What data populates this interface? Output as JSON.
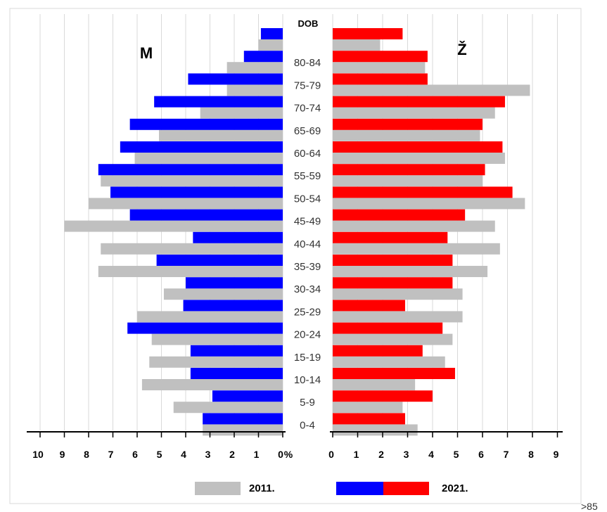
{
  "chart_data": {
    "type": "bar",
    "subtype": "population-pyramid",
    "title": "",
    "center_header": "DOB",
    "center_axis_symbol": "%",
    "side_labels": {
      "left": "M",
      "right": "Ž"
    },
    "categories": [
      ">85",
      "80-84",
      "75-79",
      "70-74",
      "65-69",
      "60-64",
      "55-59",
      "50-54",
      "45-49",
      "40-44",
      "35-39",
      "30-34",
      "25-29",
      "20-24",
      "15-19",
      "10-14",
      "5-9",
      "0-4"
    ],
    "category_labels": [
      "",
      "80-84",
      "75-79",
      "70-74",
      "65-69",
      "60-64",
      "55-59",
      "50-54",
      "45-49",
      "40-44",
      "35-39",
      "30-34",
      "25-29",
      "20-24",
      "15-19",
      "10-14",
      "5-9",
      "0-4"
    ],
    "left_ticks": [
      "10",
      "9",
      "8",
      "7",
      "6",
      "5",
      "4",
      "3",
      "2",
      "1",
      "0"
    ],
    "right_ticks": [
      "0",
      "1",
      "2",
      "3",
      "4",
      "5",
      "6",
      "7",
      "8",
      "9"
    ],
    "xlim": [
      0,
      10
    ],
    "series": [
      {
        "name": "2011.",
        "color": "#c0c0c0",
        "male": [
          1.0,
          2.3,
          2.3,
          3.4,
          5.1,
          6.1,
          7.5,
          8.0,
          9.0,
          7.5,
          7.6,
          4.9,
          6.0,
          5.4,
          5.5,
          5.8,
          4.5,
          3.3
        ],
        "female": [
          1.9,
          3.7,
          7.9,
          6.5,
          5.9,
          6.9,
          6.0,
          7.7,
          6.5,
          6.7,
          6.2,
          5.2,
          5.2,
          4.8,
          4.5,
          3.3,
          2.8,
          3.4
        ]
      },
      {
        "name": "2021.",
        "color_male": "#0000ff",
        "color_female": "#ff0000",
        "male": [
          0.9,
          1.6,
          3.9,
          5.3,
          6.3,
          6.7,
          7.6,
          7.1,
          6.3,
          3.7,
          5.2,
          4.0,
          4.1,
          6.4,
          3.8,
          3.8,
          2.9,
          3.3
        ],
        "female": [
          2.8,
          3.8,
          3.8,
          6.9,
          6.0,
          6.8,
          6.1,
          7.2,
          5.3,
          4.6,
          4.8,
          4.8,
          2.9,
          4.4,
          3.6,
          4.9,
          4.0,
          2.9
        ]
      }
    ],
    "legend": {
      "placement": "bottom",
      "entries": [
        "2011.",
        "2021."
      ]
    },
    "grid": true
  },
  "footer_note": ">85"
}
